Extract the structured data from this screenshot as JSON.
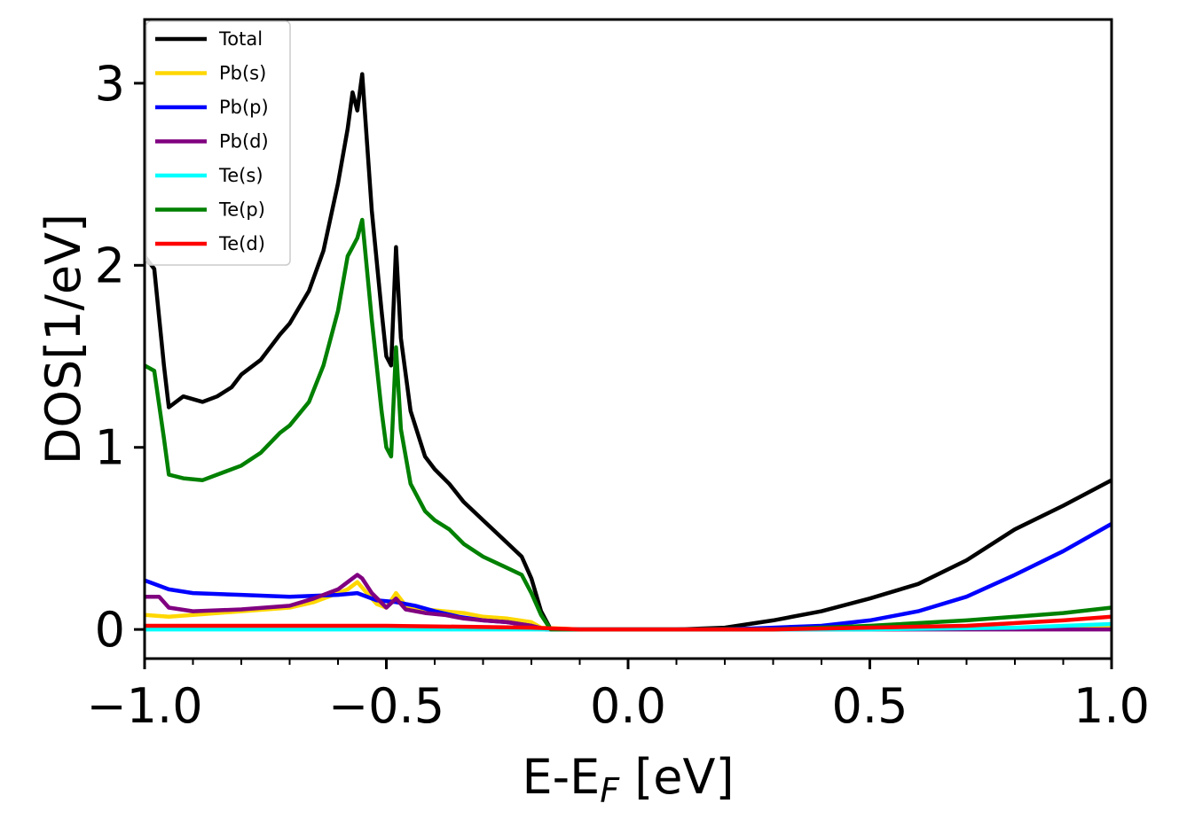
{
  "chart_data": {
    "type": "line",
    "xlabel": "E-E",
    "xlabel_sub": "F",
    "xlabel_unit": " [eV]",
    "ylabel": "DOS[1/eV]",
    "xlim": [
      -1.0,
      1.0
    ],
    "ylim": [
      -0.16,
      3.35
    ],
    "xticks": [
      -1.0,
      -0.5,
      0.0,
      0.5,
      1.0
    ],
    "xtick_labels": [
      "−1.0",
      "−0.5",
      "0.0",
      "0.5",
      "1.0"
    ],
    "yticks": [
      0,
      1,
      2,
      3
    ],
    "ytick_labels": [
      "0",
      "1",
      "2",
      "3"
    ],
    "x_minor_step": 0.1,
    "grid": false,
    "legend_position": "top-left",
    "series": [
      {
        "name": "Total",
        "color": "#000000",
        "points": [
          [
            -1.0,
            2.05
          ],
          [
            -0.98,
            1.98
          ],
          [
            -0.96,
            1.45
          ],
          [
            -0.95,
            1.22
          ],
          [
            -0.92,
            1.28
          ],
          [
            -0.88,
            1.25
          ],
          [
            -0.85,
            1.28
          ],
          [
            -0.82,
            1.33
          ],
          [
            -0.8,
            1.4
          ],
          [
            -0.76,
            1.48
          ],
          [
            -0.72,
            1.62
          ],
          [
            -0.7,
            1.68
          ],
          [
            -0.66,
            1.86
          ],
          [
            -0.63,
            2.08
          ],
          [
            -0.6,
            2.45
          ],
          [
            -0.58,
            2.75
          ],
          [
            -0.57,
            2.95
          ],
          [
            -0.56,
            2.85
          ],
          [
            -0.55,
            3.05
          ],
          [
            -0.53,
            2.3
          ],
          [
            -0.51,
            1.75
          ],
          [
            -0.5,
            1.5
          ],
          [
            -0.49,
            1.45
          ],
          [
            -0.48,
            2.1
          ],
          [
            -0.47,
            1.6
          ],
          [
            -0.45,
            1.2
          ],
          [
            -0.42,
            0.95
          ],
          [
            -0.4,
            0.88
          ],
          [
            -0.37,
            0.8
          ],
          [
            -0.34,
            0.7
          ],
          [
            -0.3,
            0.6
          ],
          [
            -0.26,
            0.5
          ],
          [
            -0.22,
            0.4
          ],
          [
            -0.2,
            0.28
          ],
          [
            -0.18,
            0.1
          ],
          [
            -0.16,
            0.0
          ],
          [
            -0.1,
            0.0
          ],
          [
            0.0,
            0.0
          ],
          [
            0.1,
            0.0
          ],
          [
            0.2,
            0.01
          ],
          [
            0.3,
            0.05
          ],
          [
            0.4,
            0.1
          ],
          [
            0.5,
            0.17
          ],
          [
            0.6,
            0.25
          ],
          [
            0.7,
            0.38
          ],
          [
            0.8,
            0.55
          ],
          [
            0.9,
            0.68
          ],
          [
            1.0,
            0.82
          ]
        ]
      },
      {
        "name": "Pb(s)",
        "color": "#ffd700",
        "points": [
          [
            -1.0,
            0.08
          ],
          [
            -0.95,
            0.07
          ],
          [
            -0.9,
            0.08
          ],
          [
            -0.8,
            0.1
          ],
          [
            -0.7,
            0.12
          ],
          [
            -0.65,
            0.15
          ],
          [
            -0.6,
            0.2
          ],
          [
            -0.58,
            0.22
          ],
          [
            -0.56,
            0.26
          ],
          [
            -0.54,
            0.2
          ],
          [
            -0.52,
            0.14
          ],
          [
            -0.5,
            0.12
          ],
          [
            -0.48,
            0.2
          ],
          [
            -0.46,
            0.13
          ],
          [
            -0.42,
            0.11
          ],
          [
            -0.38,
            0.1
          ],
          [
            -0.34,
            0.09
          ],
          [
            -0.3,
            0.07
          ],
          [
            -0.25,
            0.06
          ],
          [
            -0.2,
            0.04
          ],
          [
            -0.18,
            0.01
          ],
          [
            -0.1,
            0.0
          ],
          [
            0.0,
            0.0
          ],
          [
            0.5,
            0.0
          ],
          [
            1.0,
            0.01
          ]
        ]
      },
      {
        "name": "Pb(p)",
        "color": "#0000ff",
        "points": [
          [
            -1.0,
            0.27
          ],
          [
            -0.95,
            0.22
          ],
          [
            -0.9,
            0.2
          ],
          [
            -0.8,
            0.19
          ],
          [
            -0.7,
            0.18
          ],
          [
            -0.6,
            0.19
          ],
          [
            -0.56,
            0.2
          ],
          [
            -0.52,
            0.16
          ],
          [
            -0.48,
            0.15
          ],
          [
            -0.44,
            0.13
          ],
          [
            -0.4,
            0.1
          ],
          [
            -0.35,
            0.07
          ],
          [
            -0.3,
            0.05
          ],
          [
            -0.25,
            0.04
          ],
          [
            -0.2,
            0.02
          ],
          [
            -0.17,
            0.0
          ],
          [
            0.0,
            0.0
          ],
          [
            0.2,
            0.0
          ],
          [
            0.3,
            0.01
          ],
          [
            0.4,
            0.02
          ],
          [
            0.5,
            0.05
          ],
          [
            0.6,
            0.1
          ],
          [
            0.7,
            0.18
          ],
          [
            0.8,
            0.3
          ],
          [
            0.9,
            0.43
          ],
          [
            1.0,
            0.58
          ]
        ]
      },
      {
        "name": "Pb(d)",
        "color": "#800080",
        "points": [
          [
            -1.0,
            0.18
          ],
          [
            -0.97,
            0.18
          ],
          [
            -0.95,
            0.12
          ],
          [
            -0.9,
            0.1
          ],
          [
            -0.8,
            0.11
          ],
          [
            -0.7,
            0.13
          ],
          [
            -0.65,
            0.17
          ],
          [
            -0.6,
            0.22
          ],
          [
            -0.58,
            0.26
          ],
          [
            -0.56,
            0.3
          ],
          [
            -0.55,
            0.28
          ],
          [
            -0.53,
            0.2
          ],
          [
            -0.5,
            0.12
          ],
          [
            -0.48,
            0.17
          ],
          [
            -0.46,
            0.11
          ],
          [
            -0.42,
            0.09
          ],
          [
            -0.38,
            0.08
          ],
          [
            -0.34,
            0.06
          ],
          [
            -0.3,
            0.05
          ],
          [
            -0.25,
            0.04
          ],
          [
            -0.2,
            0.02
          ],
          [
            -0.17,
            0.0
          ],
          [
            0.0,
            0.0
          ],
          [
            1.0,
            0.0
          ]
        ]
      },
      {
        "name": "Te(s)",
        "color": "#00ffff",
        "points": [
          [
            -1.0,
            0.0
          ],
          [
            -0.5,
            0.0
          ],
          [
            0.0,
            0.0
          ],
          [
            0.5,
            0.0
          ],
          [
            0.8,
            0.01
          ],
          [
            1.0,
            0.03
          ]
        ]
      },
      {
        "name": "Te(p)",
        "color": "#008000",
        "points": [
          [
            -1.0,
            1.45
          ],
          [
            -0.98,
            1.42
          ],
          [
            -0.96,
            1.05
          ],
          [
            -0.95,
            0.85
          ],
          [
            -0.92,
            0.83
          ],
          [
            -0.88,
            0.82
          ],
          [
            -0.85,
            0.85
          ],
          [
            -0.8,
            0.9
          ],
          [
            -0.76,
            0.97
          ],
          [
            -0.72,
            1.08
          ],
          [
            -0.7,
            1.12
          ],
          [
            -0.66,
            1.25
          ],
          [
            -0.63,
            1.45
          ],
          [
            -0.6,
            1.75
          ],
          [
            -0.58,
            2.05
          ],
          [
            -0.57,
            2.1
          ],
          [
            -0.56,
            2.15
          ],
          [
            -0.55,
            2.25
          ],
          [
            -0.53,
            1.7
          ],
          [
            -0.51,
            1.2
          ],
          [
            -0.5,
            1.0
          ],
          [
            -0.49,
            0.95
          ],
          [
            -0.48,
            1.55
          ],
          [
            -0.47,
            1.1
          ],
          [
            -0.45,
            0.8
          ],
          [
            -0.42,
            0.65
          ],
          [
            -0.4,
            0.6
          ],
          [
            -0.37,
            0.55
          ],
          [
            -0.34,
            0.47
          ],
          [
            -0.3,
            0.4
          ],
          [
            -0.26,
            0.35
          ],
          [
            -0.22,
            0.3
          ],
          [
            -0.2,
            0.2
          ],
          [
            -0.18,
            0.08
          ],
          [
            -0.16,
            0.0
          ],
          [
            0.0,
            0.0
          ],
          [
            0.3,
            0.0
          ],
          [
            0.5,
            0.02
          ],
          [
            0.7,
            0.05
          ],
          [
            0.9,
            0.09
          ],
          [
            1.0,
            0.12
          ]
        ]
      },
      {
        "name": "Te(d)",
        "color": "#ff0000",
        "points": [
          [
            -1.0,
            0.02
          ],
          [
            -0.5,
            0.02
          ],
          [
            -0.2,
            0.01
          ],
          [
            -0.1,
            0.0
          ],
          [
            0.0,
            0.0
          ],
          [
            0.3,
            0.0
          ],
          [
            0.5,
            0.01
          ],
          [
            0.7,
            0.02
          ],
          [
            0.9,
            0.05
          ],
          [
            1.0,
            0.07
          ]
        ]
      }
    ]
  }
}
